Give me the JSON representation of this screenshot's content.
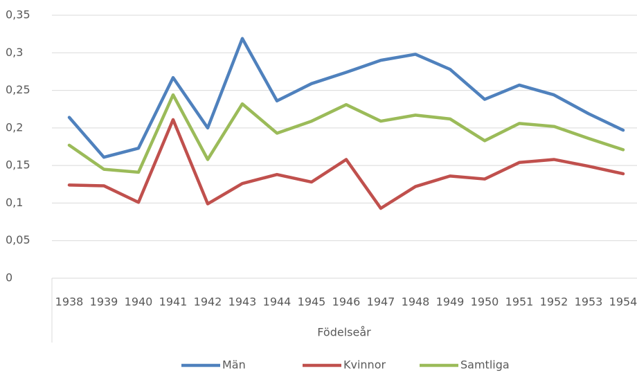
{
  "chart_data": {
    "type": "line",
    "x_label": "Födelseår",
    "categories": [
      "1938",
      "1939",
      "1940",
      "1941",
      "1942",
      "1943",
      "1944",
      "1945",
      "1946",
      "1947",
      "1948",
      "1949",
      "1950",
      "1951",
      "1952",
      "1953",
      "1954"
    ],
    "series": [
      {
        "name": "Män",
        "color": "#4f81bd",
        "values": [
          0.214,
          0.161,
          0.173,
          0.267,
          0.2,
          0.319,
          0.236,
          0.259,
          0.274,
          0.29,
          0.298,
          0.278,
          0.238,
          0.257,
          0.244,
          0.219,
          0.197
        ]
      },
      {
        "name": "Kvinnor",
        "color": "#c0504d",
        "values": [
          0.124,
          0.123,
          0.101,
          0.211,
          0.099,
          0.126,
          0.138,
          0.128,
          0.158,
          0.093,
          0.122,
          0.136,
          0.132,
          0.154,
          0.158,
          0.149,
          0.139
        ]
      },
      {
        "name": "Samtliga",
        "color": "#9bbb59",
        "values": [
          0.177,
          0.145,
          0.141,
          0.244,
          0.158,
          0.232,
          0.193,
          0.209,
          0.231,
          0.209,
          0.217,
          0.212,
          0.183,
          0.206,
          0.202,
          0.186,
          0.171
        ]
      }
    ],
    "ylim": [
      0,
      0.35
    ],
    "yticks": [
      0,
      {
        "value": 0.05,
        "label": "0,05"
      },
      {
        "value": 0.1,
        "label": "0,1"
      },
      {
        "value": 0.15,
        "label": "0,15"
      },
      {
        "value": 0.2,
        "label": "0,2"
      },
      {
        "value": 0.25,
        "label": "0,25"
      },
      {
        "value": 0.3,
        "label": "0,3"
      },
      {
        "value": 0.35,
        "label": "0,35"
      }
    ],
    "grid": true,
    "legend": "bottom"
  }
}
